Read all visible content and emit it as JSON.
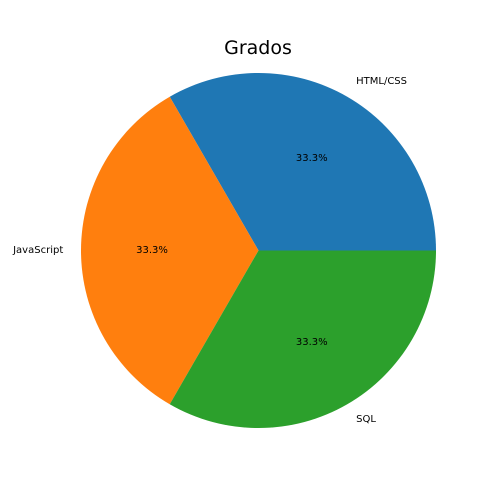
{
  "chart_data": {
    "type": "pie",
    "title": "Grados",
    "labels": [
      "HTML/CSS",
      "JavaScript",
      "SQL"
    ],
    "values": [
      1,
      1,
      1
    ],
    "percent_labels": [
      "33.3%",
      "33.3%",
      "33.3%"
    ],
    "colors": [
      "#1f77b4",
      "#ff7f0e",
      "#2ca02c"
    ],
    "start_angle_deg": 0,
    "direction": "counterclockwise"
  }
}
